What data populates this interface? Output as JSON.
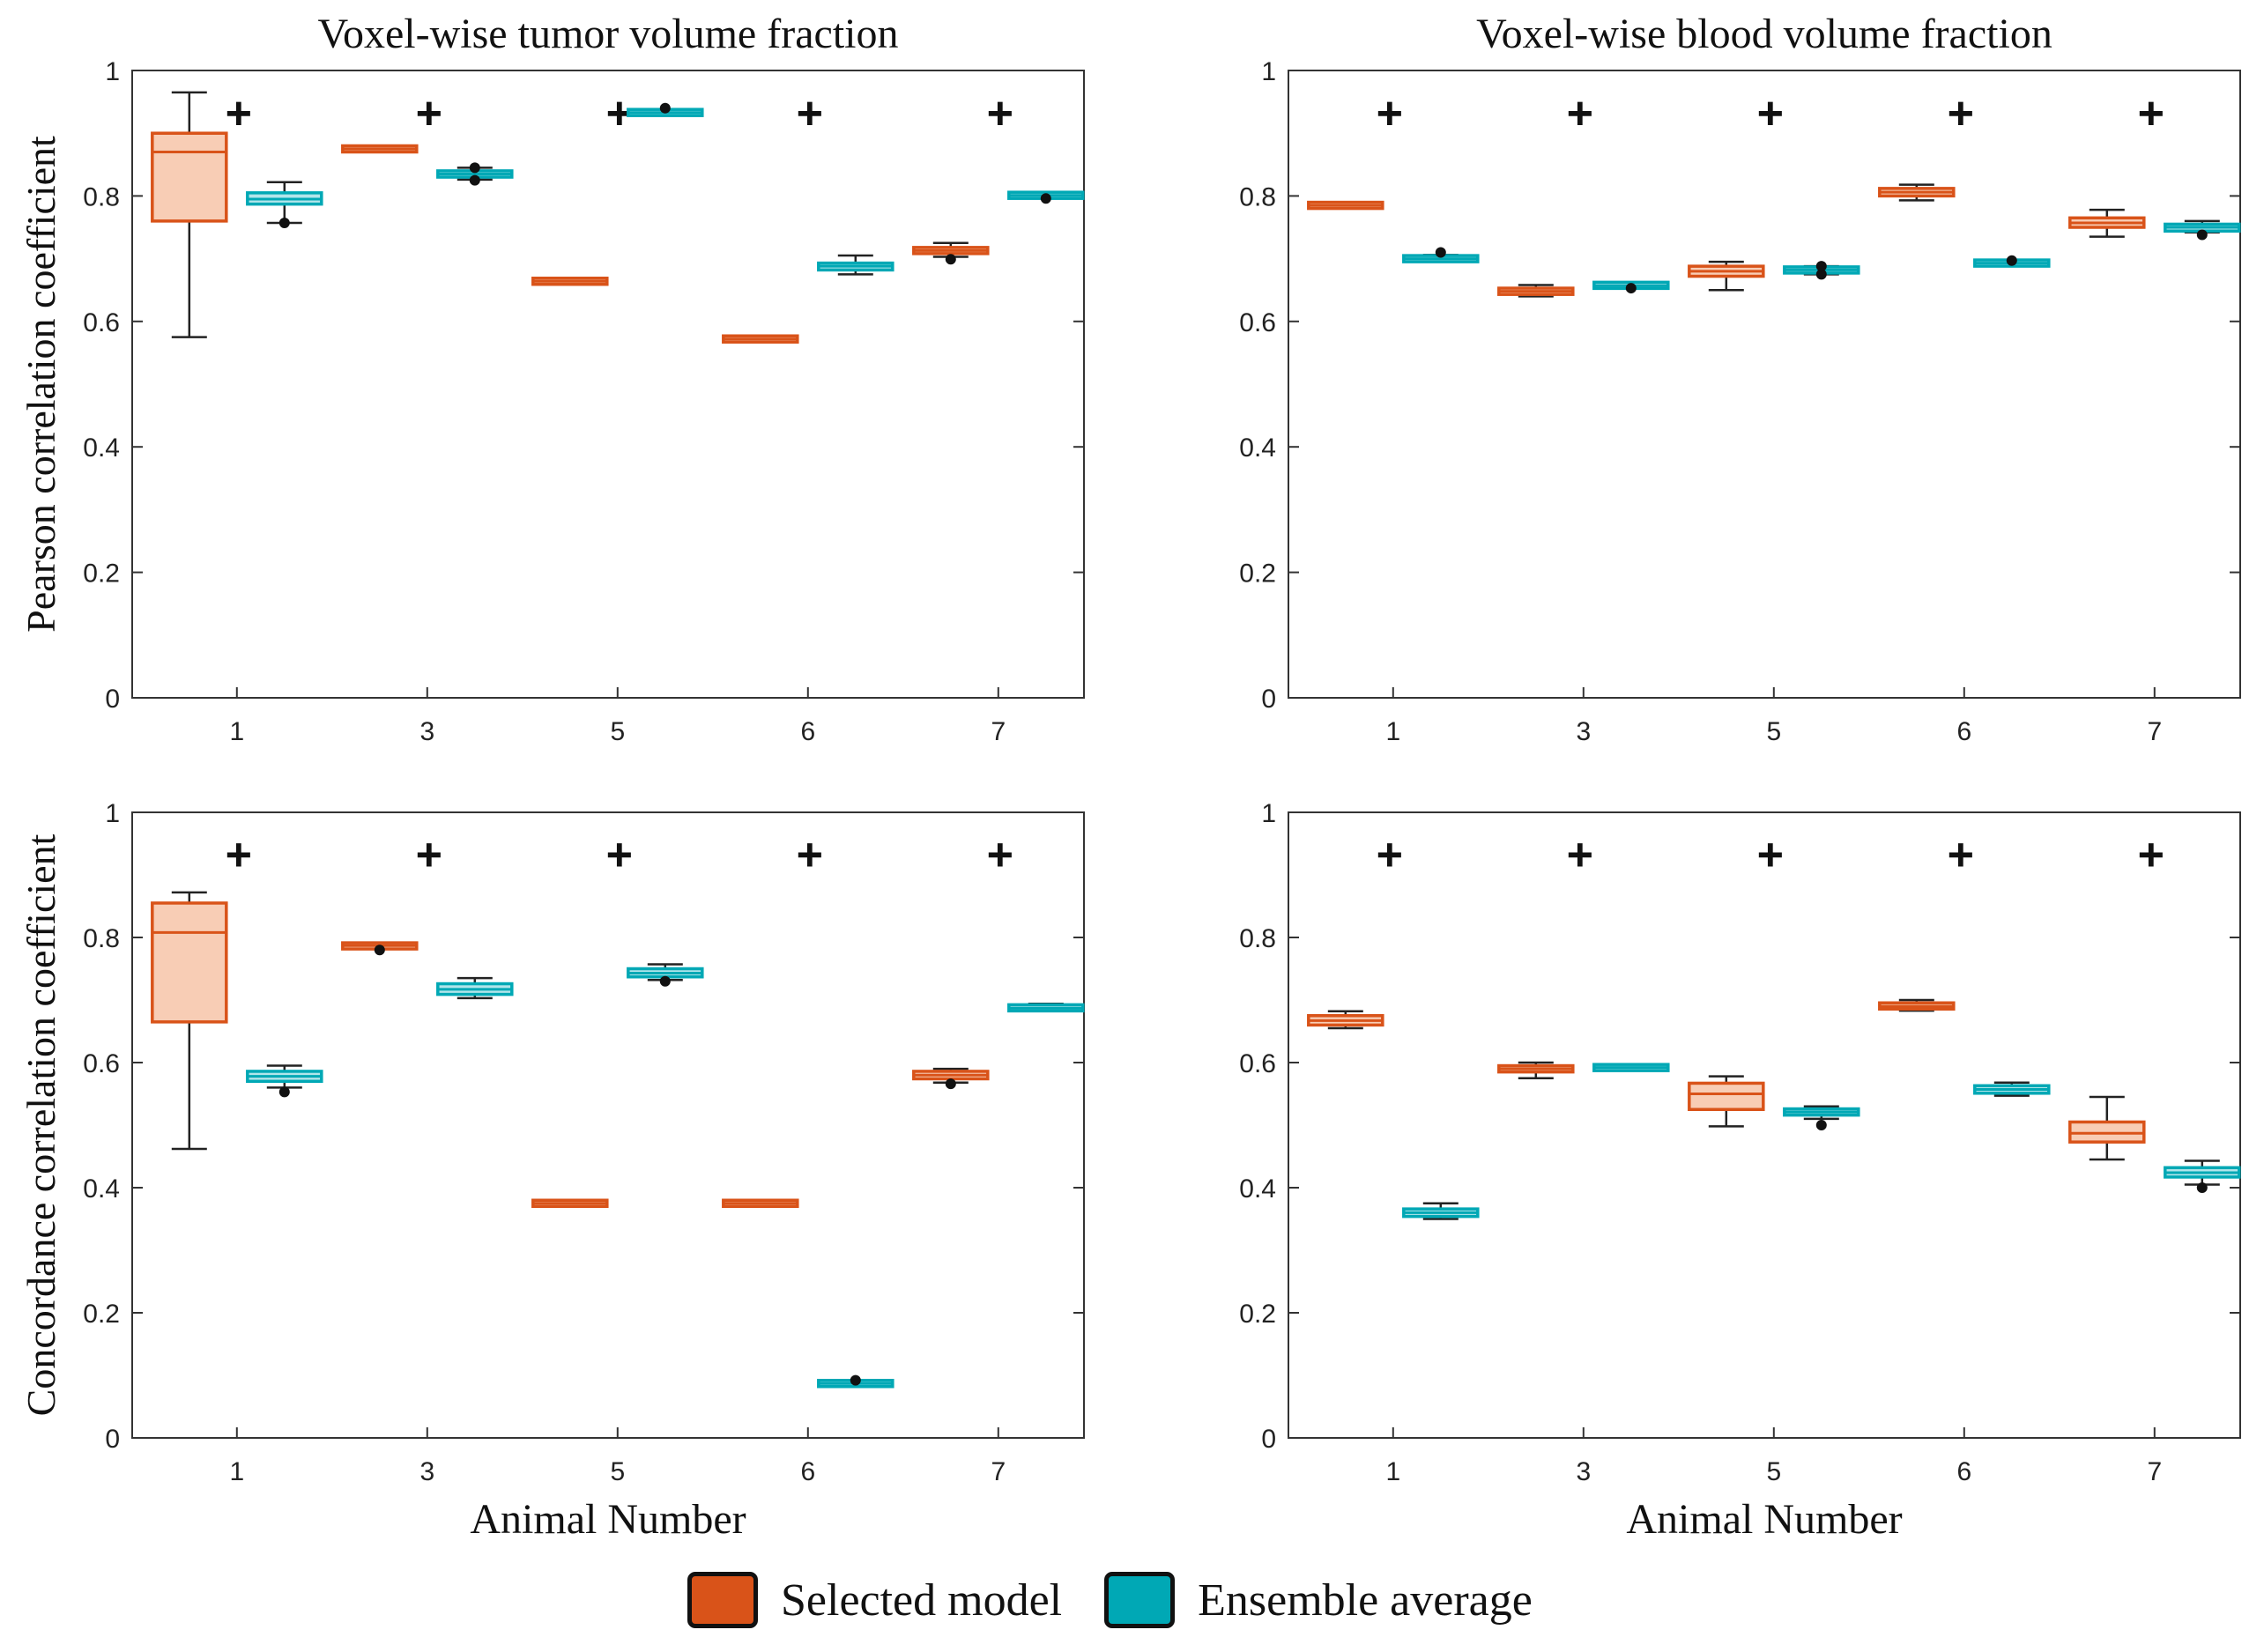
{
  "colors": {
    "selected_edge": "#D95319",
    "selected_fill": "#F8CDB5",
    "ensemble_edge": "#00A8B5",
    "ensemble_fill": "#B2E5EA",
    "axis": "#333333",
    "marker": "#111111"
  },
  "legend": {
    "selected": {
      "label": "Selected model",
      "color": "#D95319"
    },
    "ensemble": {
      "label": "Ensemble average",
      "color": "#00A8B5"
    }
  },
  "chart_data": [
    {
      "type": "boxplot",
      "title": "Voxel-wise tumor volume fraction",
      "xlabel": "",
      "ylabel": "Pearson correlation coefficient",
      "ylim": [
        0,
        1
      ],
      "yticks": [
        "0",
        "0.2",
        "0.4",
        "0.6",
        "0.8",
        "1"
      ],
      "categories": [
        "1",
        "3",
        "5",
        "6",
        "7"
      ],
      "significance_marker": "+",
      "significance_y": 0.93,
      "series": [
        {
          "name": "Selected model",
          "boxes": [
            {
              "min": 0.575,
              "q1": 0.76,
              "median": 0.87,
              "q3": 0.9,
              "max": 0.965,
              "outliers": []
            },
            {
              "min": 0.873,
              "q1": 0.873,
              "median": 0.875,
              "q3": 0.877,
              "max": 0.877,
              "outliers": []
            },
            {
              "min": 0.66,
              "q1": 0.661,
              "median": 0.664,
              "q3": 0.667,
              "max": 0.668,
              "outliers": []
            },
            {
              "min": 0.568,
              "q1": 0.569,
              "median": 0.572,
              "q3": 0.575,
              "max": 0.576,
              "outliers": []
            },
            {
              "min": 0.703,
              "q1": 0.709,
              "median": 0.713,
              "q3": 0.717,
              "max": 0.725,
              "outliers": [
                0.699
              ]
            }
          ]
        },
        {
          "name": "Ensemble average",
          "boxes": [
            {
              "min": 0.757,
              "q1": 0.787,
              "median": 0.795,
              "q3": 0.805,
              "max": 0.822,
              "outliers": [
                0.757
              ]
            },
            {
              "min": 0.826,
              "q1": 0.83,
              "median": 0.835,
              "q3": 0.84,
              "max": 0.845,
              "outliers": [
                0.825,
                0.845
              ]
            },
            {
              "min": 0.928,
              "q1": 0.93,
              "median": 0.933,
              "q3": 0.936,
              "max": 0.938,
              "outliers": [
                0.94
              ]
            },
            {
              "min": 0.675,
              "q1": 0.682,
              "median": 0.688,
              "q3": 0.693,
              "max": 0.705,
              "outliers": []
            },
            {
              "min": 0.797,
              "q1": 0.799,
              "median": 0.801,
              "q3": 0.803,
              "max": 0.805,
              "outliers": [
                0.796
              ]
            }
          ]
        }
      ]
    },
    {
      "type": "boxplot",
      "title": "Voxel-wise blood volume fraction",
      "xlabel": "",
      "ylabel": "",
      "ylim": [
        0,
        1
      ],
      "yticks": [
        "0",
        "0.2",
        "0.4",
        "0.6",
        "0.8",
        "1"
      ],
      "categories": [
        "1",
        "3",
        "5",
        "6",
        "7"
      ],
      "significance_marker": "+",
      "significance_y": 0.93,
      "series": [
        {
          "name": "Selected model",
          "boxes": [
            {
              "min": 0.78,
              "q1": 0.781,
              "median": 0.785,
              "q3": 0.789,
              "max": 0.79,
              "outliers": []
            },
            {
              "min": 0.64,
              "q1": 0.643,
              "median": 0.648,
              "q3": 0.653,
              "max": 0.658,
              "outliers": []
            },
            {
              "min": 0.65,
              "q1": 0.672,
              "median": 0.68,
              "q3": 0.688,
              "max": 0.695,
              "outliers": []
            },
            {
              "min": 0.793,
              "q1": 0.8,
              "median": 0.806,
              "q3": 0.812,
              "max": 0.818,
              "outliers": []
            },
            {
              "min": 0.735,
              "q1": 0.75,
              "median": 0.757,
              "q3": 0.765,
              "max": 0.778,
              "outliers": []
            }
          ]
        },
        {
          "name": "Ensemble average",
          "boxes": [
            {
              "min": 0.695,
              "q1": 0.697,
              "median": 0.7,
              "q3": 0.703,
              "max": 0.706,
              "outliers": [
                0.71
              ]
            },
            {
              "min": 0.655,
              "q1": 0.656,
              "median": 0.657,
              "q3": 0.659,
              "max": 0.66,
              "outliers": [
                0.653
              ]
            },
            {
              "min": 0.675,
              "q1": 0.678,
              "median": 0.682,
              "q3": 0.686,
              "max": 0.688,
              "outliers": [
                0.675,
                0.688
              ]
            },
            {
              "min": 0.69,
              "q1": 0.691,
              "median": 0.693,
              "q3": 0.695,
              "max": 0.696,
              "outliers": [
                0.697
              ]
            },
            {
              "min": 0.742,
              "q1": 0.744,
              "median": 0.75,
              "q3": 0.755,
              "max": 0.76,
              "outliers": [
                0.738
              ]
            }
          ]
        }
      ]
    },
    {
      "type": "boxplot",
      "title": "",
      "xlabel": "Animal Number",
      "ylabel": "Concordance correlation coefficient",
      "ylim": [
        0,
        1
      ],
      "yticks": [
        "0",
        "0.2",
        "0.4",
        "0.6",
        "0.8",
        "1"
      ],
      "categories": [
        "1",
        "3",
        "5",
        "6",
        "7"
      ],
      "significance_marker": "+",
      "significance_y": 0.93,
      "series": [
        {
          "name": "Selected model",
          "boxes": [
            {
              "min": 0.462,
              "q1": 0.665,
              "median": 0.808,
              "q3": 0.855,
              "max": 0.872,
              "outliers": []
            },
            {
              "min": 0.782,
              "q1": 0.783,
              "median": 0.787,
              "q3": 0.79,
              "max": 0.791,
              "outliers": [
                0.78
              ]
            },
            {
              "min": 0.37,
              "q1": 0.371,
              "median": 0.375,
              "q3": 0.379,
              "max": 0.38,
              "outliers": []
            },
            {
              "min": 0.37,
              "q1": 0.371,
              "median": 0.375,
              "q3": 0.379,
              "max": 0.38,
              "outliers": []
            },
            {
              "min": 0.568,
              "q1": 0.574,
              "median": 0.58,
              "q3": 0.586,
              "max": 0.59,
              "outliers": [
                0.566
              ]
            }
          ]
        },
        {
          "name": "Ensemble average",
          "boxes": [
            {
              "min": 0.56,
              "q1": 0.57,
              "median": 0.578,
              "q3": 0.586,
              "max": 0.595,
              "outliers": [
                0.553
              ]
            },
            {
              "min": 0.703,
              "q1": 0.709,
              "median": 0.717,
              "q3": 0.726,
              "max": 0.735,
              "outliers": []
            },
            {
              "min": 0.732,
              "q1": 0.737,
              "median": 0.743,
              "q3": 0.75,
              "max": 0.757,
              "outliers": [
                0.73
              ]
            },
            {
              "min": 0.084,
              "q1": 0.085,
              "median": 0.087,
              "q3": 0.089,
              "max": 0.09,
              "outliers": [
                0.092
              ]
            },
            {
              "min": 0.682,
              "q1": 0.684,
              "median": 0.687,
              "q3": 0.691,
              "max": 0.694,
              "outliers": []
            }
          ]
        }
      ]
    },
    {
      "type": "boxplot",
      "title": "",
      "xlabel": "Animal Number",
      "ylabel": "",
      "ylim": [
        0,
        1
      ],
      "yticks": [
        "0",
        "0.2",
        "0.4",
        "0.6",
        "0.8",
        "1"
      ],
      "categories": [
        "1",
        "3",
        "5",
        "6",
        "7"
      ],
      "significance_marker": "+",
      "significance_y": 0.93,
      "series": [
        {
          "name": "Selected model",
          "boxes": [
            {
              "min": 0.655,
              "q1": 0.66,
              "median": 0.667,
              "q3": 0.675,
              "max": 0.682,
              "outliers": []
            },
            {
              "min": 0.575,
              "q1": 0.585,
              "median": 0.59,
              "q3": 0.595,
              "max": 0.6,
              "outliers": []
            },
            {
              "min": 0.498,
              "q1": 0.525,
              "median": 0.55,
              "q3": 0.567,
              "max": 0.578,
              "outliers": []
            },
            {
              "min": 0.683,
              "q1": 0.686,
              "median": 0.69,
              "q3": 0.695,
              "max": 0.7,
              "outliers": []
            },
            {
              "min": 0.445,
              "q1": 0.473,
              "median": 0.487,
              "q3": 0.505,
              "max": 0.545,
              "outliers": []
            }
          ]
        },
        {
          "name": "Ensemble average",
          "boxes": [
            {
              "min": 0.35,
              "q1": 0.354,
              "median": 0.36,
              "q3": 0.366,
              "max": 0.375,
              "outliers": []
            },
            {
              "min": 0.591,
              "q1": 0.591,
              "median": 0.592,
              "q3": 0.593,
              "max": 0.593,
              "outliers": []
            },
            {
              "min": 0.51,
              "q1": 0.516,
              "median": 0.521,
              "q3": 0.526,
              "max": 0.53,
              "outliers": [
                0.5
              ]
            },
            {
              "min": 0.547,
              "q1": 0.551,
              "median": 0.557,
              "q3": 0.563,
              "max": 0.568,
              "outliers": []
            },
            {
              "min": 0.405,
              "q1": 0.417,
              "median": 0.424,
              "q3": 0.432,
              "max": 0.443,
              "outliers": [
                0.4
              ]
            }
          ]
        }
      ]
    }
  ]
}
